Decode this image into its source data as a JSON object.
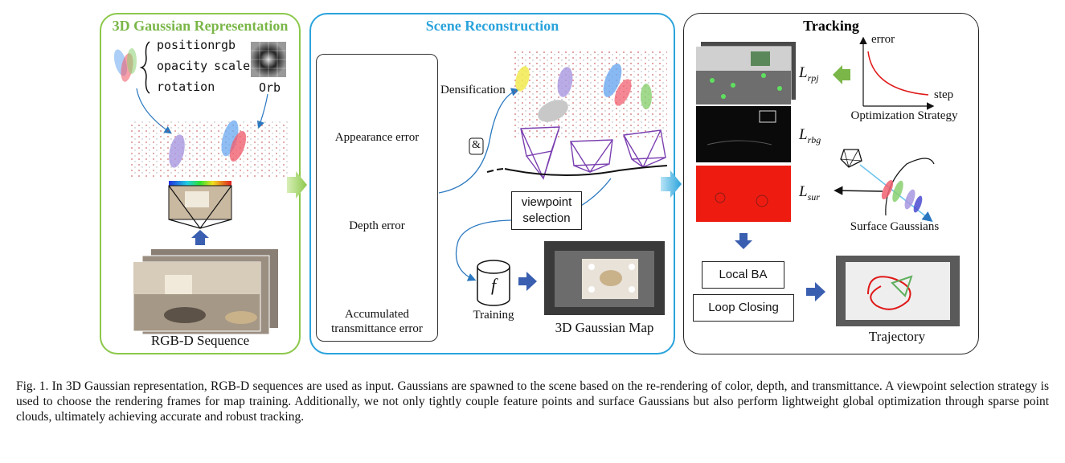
{
  "panels": {
    "representation": {
      "title": "3D Gaussian Representation",
      "attributes": [
        "position",
        "rgb",
        "opacity",
        "scale",
        "rotation"
      ],
      "orb_label": "Orb",
      "sequence_label": "RGB-D Sequence"
    },
    "scene": {
      "title": "Scene Reconstruction",
      "errors": [
        "Appearance error",
        "Depth error",
        "Accumulated",
        "transmittance error"
      ],
      "densification": "Densification",
      "and_symbol": "&",
      "viewpoint_line1": "viewpoint",
      "viewpoint_line2": "selection",
      "training": "Training",
      "training_symbol": "f",
      "map_label": "3D Gaussian Map"
    },
    "tracking": {
      "title": "Tracking",
      "loss_base": "L",
      "loss_rpj": "rpj",
      "loss_rbg": "rbg",
      "loss_sur": "sur",
      "chart_ylabel": "error",
      "chart_xlabel": "step",
      "optimization": "Optimization Strategy",
      "surface": "Surface Gaussians",
      "local_ba": "Local BA",
      "loop_closing": "Loop Closing",
      "trajectory": "Trajectory"
    }
  },
  "caption": "Fig. 1.    In 3D Gaussian representation, RGB-D sequences are used as input. Gaussians are spawned to the scene based on the re-rendering of color, depth, and transmittance. A viewpoint selection strategy is used to choose the rendering frames for map training. Additionally, we not only tightly couple feature points and surface Gaussians but also perform lightweight global optimization through sparse point clouds, ultimately achieving accurate and robust tracking.",
  "colors": {
    "green_border": "#8cc84b",
    "blue_border": "#2aa3dc",
    "depth_blue": "#2c6aa6",
    "trans_orange": "#c2500e",
    "loss_red": "#e01818",
    "arrow_blue": "#3a5fb0"
  }
}
